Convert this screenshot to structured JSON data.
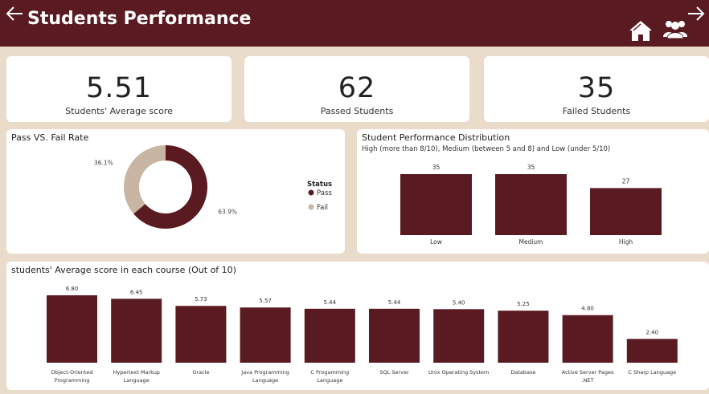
{
  "header": {
    "title": "Students Performance",
    "back_icon": "arrow-left-icon",
    "forward_icon": "arrow-right-icon",
    "home_icon": "home-icon",
    "users_icon": "users-icon"
  },
  "colors": {
    "primary": "#5a1a22",
    "secondary": "#c8b5a3",
    "background": "#e9dccb"
  },
  "kpis": [
    {
      "value": "5.51",
      "label": "Students' Average score"
    },
    {
      "value": "62",
      "label": "Passed Students"
    },
    {
      "value": "35",
      "label": "Failed Students"
    }
  ],
  "chart_data": [
    {
      "type": "pie",
      "title": "Pass VS. Fail Rate",
      "legend_title": "Status",
      "legend_placement": "right",
      "categories": [
        "Pass",
        "Fail"
      ],
      "values": [
        63.9,
        36.1
      ],
      "labels": [
        "63.9%",
        "36.1%"
      ],
      "colors": [
        "#5a1a22",
        "#c8b5a3"
      ]
    },
    {
      "type": "bar",
      "title": "Student Performance Distribution",
      "subtitle": "High (more than 8/10), Medium (between 5 and 8) and Low (under 5/10)",
      "categories": [
        "Low",
        "Medium",
        "High"
      ],
      "values": [
        35,
        35,
        27
      ],
      "ylim": [
        0,
        35
      ],
      "grid": false
    },
    {
      "type": "bar",
      "title": "students' Average score in each course (Out of 10)",
      "categories": [
        [
          "Object-Oriented",
          "Programming"
        ],
        [
          "Hypertext Markup",
          "Language"
        ],
        [
          "Oracle"
        ],
        [
          "Java Programming",
          "Language"
        ],
        [
          "C Progamming",
          "Language"
        ],
        [
          "SQL Server"
        ],
        [
          "Unix Operating System"
        ],
        [
          "Database"
        ],
        [
          "Active Server Pages",
          ".NET"
        ],
        [
          "C Sharp Language"
        ]
      ],
      "values": [
        6.8,
        6.45,
        5.73,
        5.57,
        5.44,
        5.44,
        5.4,
        5.25,
        4.8,
        2.4
      ],
      "value_labels": [
        "6.80",
        "6.45",
        "5.73",
        "5.57",
        "5.44",
        "5.44",
        "5.40",
        "5.25",
        "4.80",
        "2.40"
      ],
      "ylim": [
        0,
        6.8
      ],
      "grid": false
    }
  ]
}
